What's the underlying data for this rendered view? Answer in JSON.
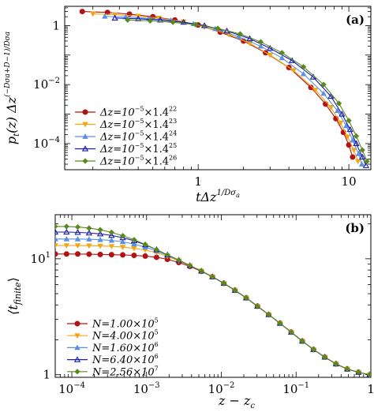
{
  "chart_data": [
    {
      "panel_label": "(a)",
      "type": "line",
      "xscale": "log",
      "yscale": "log",
      "xlim": [
        0.13,
        14
      ],
      "ylim": [
        1.3e-05,
        4.5
      ],
      "x_ticks": [
        {
          "value": 1,
          "label": "1"
        },
        {
          "value": 10,
          "label": "10"
        }
      ],
      "y_ticks": [
        {
          "value": 1,
          "label": "1"
        },
        {
          "value": 0.01,
          "label": "10",
          "sup": "−2"
        },
        {
          "value": 0.0001,
          "label": "10",
          "sup": "−4"
        }
      ],
      "xlabel": {
        "main": "tΔz",
        "sup": "1/Dσ",
        "sub": "a"
      },
      "ylabel": {
        "main": "p",
        "sub": "t",
        "rest": "(z) Δz",
        "sup": "(−Dσa+D−1)/Dσa"
      },
      "legend_location": "lower-left",
      "series": [
        {
          "name": "Δz=10−5×1.4^22",
          "label_base": "Δz=10",
          "label_sup1": "−5",
          "label_mid": "×1.4",
          "label_sup2": "22",
          "color": "#b31212",
          "marker": "circle",
          "x": [
            0.17,
            0.25,
            0.35,
            0.5,
            0.7,
            1.0,
            1.4,
            2.0,
            2.8,
            4.0,
            5.6,
            7.0,
            8.2,
            9.2,
            10.0,
            10.6
          ],
          "y": [
            3.0,
            2.8,
            2.45,
            2.0,
            1.55,
            1.05,
            0.6,
            0.3,
            0.12,
            0.038,
            0.008,
            0.0022,
            0.0007,
            0.00024,
            9e-05,
            3.5e-05
          ]
        },
        {
          "name": "Δz=10−5×1.4^23",
          "label_base": "Δz=10",
          "label_sup1": "−5",
          "label_mid": "×1.4",
          "label_sup2": "23",
          "color": "#f2a515",
          "marker": "triangle-down",
          "x": [
            0.2,
            0.28,
            0.4,
            0.55,
            0.8,
            1.1,
            1.6,
            2.2,
            3.0,
            4.3,
            6.0,
            7.6,
            8.8,
            9.8,
            10.8,
            11.5
          ],
          "y": [
            2.5,
            2.35,
            2.1,
            1.8,
            1.35,
            0.9,
            0.5,
            0.25,
            0.1,
            0.03,
            0.0065,
            0.0017,
            0.0005,
            0.00017,
            6e-05,
            2.5e-05
          ]
        },
        {
          "name": "Δz=10−5×1.4^24",
          "label_base": "Δz=10",
          "label_sup1": "−5",
          "label_mid": "×1.4",
          "label_sup2": "24",
          "color": "#5b8fe0",
          "marker": "triangle-up",
          "x": [
            0.24,
            0.33,
            0.47,
            0.66,
            0.93,
            1.3,
            1.85,
            2.6,
            3.6,
            5.0,
            6.8,
            8.4,
            9.6,
            10.6,
            11.6,
            12.2
          ],
          "y": [
            2.05,
            1.95,
            1.75,
            1.5,
            1.15,
            0.78,
            0.42,
            0.2,
            0.08,
            0.023,
            0.005,
            0.0013,
            0.0004,
            0.00013,
            4.5e-05,
            2e-05
          ]
        },
        {
          "name": "Δz=10−5×1.4^25",
          "label_base": "Δz=10",
          "label_sup1": "−5",
          "label_mid": "×1.4",
          "label_sup2": "25",
          "color": "#1a1ab0",
          "marker": "triangle-up-open",
          "x": [
            0.28,
            0.4,
            0.56,
            0.8,
            1.1,
            1.55,
            2.2,
            3.0,
            4.2,
            5.8,
            7.6,
            9.0,
            10.2,
            11.2,
            12.3,
            13.0
          ],
          "y": [
            1.8,
            1.7,
            1.55,
            1.3,
            1.0,
            0.66,
            0.36,
            0.17,
            0.065,
            0.018,
            0.004,
            0.001,
            0.0003,
            0.0001,
            3.5e-05,
            1.8e-05
          ]
        },
        {
          "name": "Δz=10−5×1.4^26",
          "label_base": "Δz=10",
          "label_sup1": "−5",
          "label_mid": "×1.4",
          "label_sup2": "26",
          "color": "#5a8a1e",
          "marker": "diamond",
          "x": [
            0.34,
            0.48,
            0.68,
            0.96,
            1.35,
            1.9,
            2.6,
            3.6,
            5.0,
            6.8,
            8.6,
            10.0,
            11.2,
            12.3,
            13.2
          ],
          "y": [
            1.55,
            1.45,
            1.3,
            1.08,
            0.8,
            0.52,
            0.28,
            0.12,
            0.04,
            0.01,
            0.0023,
            0.0006,
            0.00018,
            6e-05,
            2.5e-05
          ]
        }
      ]
    },
    {
      "panel_label": "(b)",
      "type": "line",
      "xscale": "log",
      "yscale": "log",
      "xlim": [
        6e-05,
        1.0
      ],
      "ylim": [
        0.95,
        24
      ],
      "x_ticks": [
        {
          "value": 0.0001,
          "label": "10",
          "sup": "−4"
        },
        {
          "value": 0.001,
          "label": "10",
          "sup": "−3"
        },
        {
          "value": 0.01,
          "label": "10",
          "sup": "−2"
        },
        {
          "value": 0.1,
          "label": "10",
          "sup": "−1"
        },
        {
          "value": 1,
          "label": "1"
        }
      ],
      "y_ticks": [
        {
          "value": 1,
          "label": "1"
        },
        {
          "value": 10,
          "label": "10",
          "sup": "1"
        }
      ],
      "xlabel": {
        "main": "z − z",
        "sub": "c"
      },
      "ylabel": {
        "main": "⟨t",
        "sub": "finite",
        "rest": "⟩"
      },
      "legend_location": "lower-left",
      "shared_x": [
        6e-05,
        8.5e-05,
        0.00012,
        0.00017,
        0.00024,
        0.00034,
        0.00048,
        0.00068,
        0.00096,
        0.00136,
        0.0019,
        0.0027,
        0.0038,
        0.0054,
        0.0076,
        0.0108,
        0.0152,
        0.0215,
        0.0304,
        0.043,
        0.061,
        0.086,
        0.121,
        0.171,
        0.242,
        0.342,
        0.483,
        0.683,
        0.965
      ],
      "series": [
        {
          "name": "N=1.00×10^5",
          "label_base": "N=1.00×10",
          "label_sup": "5",
          "color": "#b31212",
          "marker": "circle",
          "y": [
            11.0,
            11.0,
            11.0,
            10.95,
            10.9,
            10.85,
            10.8,
            10.7,
            10.55,
            10.3,
            9.9,
            9.3,
            8.6,
            7.8,
            7.0,
            6.15,
            5.35,
            4.6,
            3.9,
            3.3,
            2.78,
            2.33,
            1.95,
            1.65,
            1.42,
            1.24,
            1.12,
            1.05,
            1.0
          ]
        },
        {
          "name": "N=4.00×10^5",
          "label_base": "N=4.00×10",
          "label_sup": "5",
          "color": "#f2a515",
          "marker": "triangle-down",
          "y": [
            13.0,
            13.0,
            13.0,
            12.95,
            12.9,
            12.8,
            12.6,
            12.3,
            11.9,
            11.3,
            10.5,
            9.6,
            8.7,
            7.85,
            7.0,
            6.15,
            5.35,
            4.6,
            3.9,
            3.3,
            2.78,
            2.33,
            1.95,
            1.65,
            1.42,
            1.24,
            1.12,
            1.05,
            1.0
          ]
        },
        {
          "name": "N=1.60×10^6",
          "label_base": "N=1.60×10",
          "label_sup": "6",
          "color": "#5b8fe0",
          "marker": "triangle-up",
          "y": [
            14.8,
            14.8,
            14.8,
            14.75,
            14.6,
            14.4,
            14.0,
            13.4,
            12.6,
            11.7,
            10.7,
            9.7,
            8.75,
            7.85,
            7.0,
            6.15,
            5.35,
            4.6,
            3.9,
            3.3,
            2.78,
            2.33,
            1.95,
            1.65,
            1.42,
            1.24,
            1.12,
            1.05,
            1.0
          ]
        },
        {
          "name": "N=6.40×10^6",
          "label_base": "N=6.40×10",
          "label_sup": "6",
          "color": "#1a1ab0",
          "marker": "triangle-up-open",
          "y": [
            17.0,
            17.0,
            16.9,
            16.7,
            16.4,
            15.9,
            15.2,
            14.3,
            13.2,
            12.0,
            10.8,
            9.75,
            8.75,
            7.85,
            7.0,
            6.15,
            5.35,
            4.6,
            3.9,
            3.3,
            2.78,
            2.33,
            1.95,
            1.65,
            1.42,
            1.24,
            1.12,
            1.05,
            1.0
          ]
        },
        {
          "name": "N=2.56×10^7",
          "label_base": "N=2.56×10",
          "label_sup": "7",
          "color": "#5a8a1e",
          "marker": "diamond",
          "y": [
            19.0,
            19.0,
            18.8,
            18.4,
            17.8,
            16.9,
            15.8,
            14.6,
            13.3,
            12.0,
            10.8,
            9.75,
            8.75,
            7.85,
            7.0,
            6.15,
            5.35,
            4.6,
            3.9,
            3.3,
            2.78,
            2.33,
            1.95,
            1.65,
            1.42,
            1.24,
            1.12,
            1.05,
            1.0
          ]
        }
      ]
    }
  ]
}
